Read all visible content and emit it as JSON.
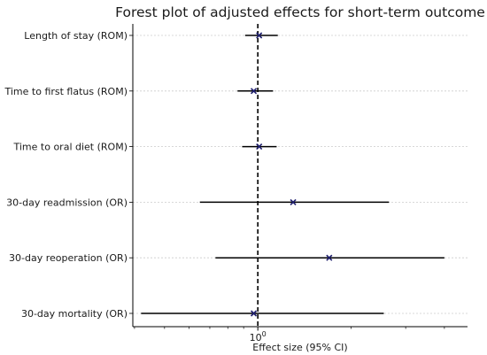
{
  "chart_data": {
    "type": "forest",
    "title": "Forest plot of adjusted effects for short-term outcome",
    "xlabel": "Effect size (95% CI)",
    "ylabel": "",
    "x_scale": "log",
    "x_ticks": [
      {
        "value": 1,
        "base": "10",
        "exponent": "0"
      }
    ],
    "reference_line": 1,
    "xlim": [
      0.395,
      4.75
    ],
    "grid": "horizontal dotted at each outcome",
    "rows": [
      {
        "label": "Length of stay (ROM)",
        "estimate": 1.01,
        "ci_low": 0.91,
        "ci_high": 1.16
      },
      {
        "label": "Time to first flatus (ROM)",
        "estimate": 0.97,
        "ci_low": 0.86,
        "ci_high": 1.12
      },
      {
        "label": "Time to oral diet (ROM)",
        "estimate": 1.01,
        "ci_low": 0.89,
        "ci_high": 1.15
      },
      {
        "label": "30-day readmission (OR)",
        "estimate": 1.3,
        "ci_low": 0.65,
        "ci_high": 2.65
      },
      {
        "label": "30-day reoperation (OR)",
        "estimate": 1.7,
        "ci_low": 0.73,
        "ci_high": 4.0
      },
      {
        "label": "30-day mortality (OR)",
        "estimate": 0.97,
        "ci_low": 0.42,
        "ci_high": 2.55
      }
    ],
    "colors": {
      "marker": "#1f1f6e",
      "ci_line": "#000000",
      "reference_line": "#000000",
      "grid": "#cccccc"
    }
  }
}
